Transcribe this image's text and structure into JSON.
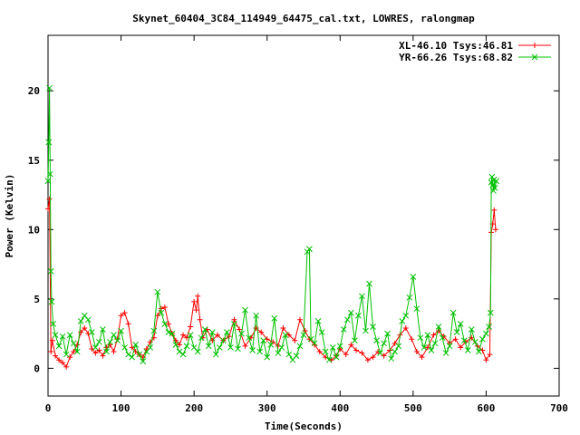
{
  "chart_data": {
    "type": "line",
    "title": "Skynet_60404_3C84_114949_64475_cal.txt, LOWRES, ralongmap",
    "xlabel": "Time(Seconds)",
    "ylabel": "Power (Kelvin)",
    "xlim": [
      0,
      700
    ],
    "ylim": [
      -2,
      24
    ],
    "xticks": [
      0,
      100,
      200,
      300,
      400,
      500,
      600,
      700
    ],
    "yticks": [
      0,
      5,
      10,
      15,
      20
    ],
    "grid": false,
    "legend_position": "top-right",
    "series": [
      {
        "name": "XL-46.10 Tsys:46.81",
        "color": "#ff0000",
        "marker": "+",
        "x": [
          0,
          2,
          4,
          6,
          10,
          15,
          20,
          25,
          30,
          35,
          40,
          45,
          50,
          55,
          60,
          65,
          70,
          75,
          80,
          85,
          90,
          95,
          100,
          105,
          110,
          115,
          120,
          125,
          130,
          135,
          140,
          145,
          150,
          155,
          160,
          165,
          170,
          175,
          180,
          185,
          190,
          195,
          200,
          203,
          205,
          208,
          212,
          218,
          225,
          232,
          240,
          248,
          255,
          262,
          270,
          278,
          285,
          292,
          300,
          308,
          315,
          322,
          330,
          338,
          345,
          352,
          358,
          365,
          372,
          380,
          388,
          395,
          400,
          408,
          415,
          422,
          430,
          438,
          445,
          452,
          460,
          468,
          475,
          482,
          490,
          498,
          505,
          512,
          520,
          528,
          535,
          542,
          550,
          558,
          565,
          572,
          580,
          588,
          595,
          600,
          605,
          607,
          609,
          611,
          613
        ],
        "y": [
          11.5,
          12.2,
          1.2,
          2.0,
          0.9,
          0.6,
          0.4,
          0.1,
          0.8,
          1.2,
          1.7,
          2.6,
          2.9,
          2.5,
          1.4,
          1.1,
          1.3,
          0.9,
          1.5,
          1.7,
          1.2,
          2.1,
          3.8,
          4.0,
          3.2,
          1.5,
          1.2,
          1.0,
          0.8,
          1.4,
          1.9,
          2.2,
          3.8,
          4.3,
          4.4,
          3.2,
          2.5,
          2.0,
          1.7,
          2.4,
          2.2,
          3.0,
          4.8,
          4.2,
          5.2,
          3.5,
          2.2,
          2.8,
          2.0,
          2.4,
          2.0,
          2.3,
          3.5,
          2.8,
          1.6,
          2.2,
          2.9,
          2.6,
          2.1,
          1.9,
          1.6,
          2.9,
          2.4,
          2.0,
          3.5,
          2.7,
          2.1,
          1.7,
          1.2,
          0.8,
          0.6,
          0.9,
          1.4,
          1.0,
          1.7,
          1.3,
          1.1,
          0.6,
          0.8,
          1.2,
          0.9,
          1.3,
          1.8,
          2.4,
          2.9,
          2.1,
          1.2,
          0.8,
          1.5,
          2.4,
          2.7,
          2.3,
          1.8,
          2.1,
          1.5,
          1.9,
          2.2,
          1.6,
          1.3,
          0.6,
          1.0,
          9.8,
          10.4,
          11.4,
          10.0
        ]
      },
      {
        "name": "YR-66.26 Tsys:68.82",
        "color": "#00c000",
        "marker": "x",
        "x": [
          0,
          1,
          2,
          3,
          4,
          5,
          7,
          10,
          15,
          20,
          25,
          30,
          35,
          40,
          45,
          50,
          55,
          60,
          65,
          70,
          75,
          80,
          85,
          90,
          95,
          100,
          105,
          110,
          115,
          120,
          125,
          130,
          135,
          140,
          145,
          150,
          155,
          160,
          165,
          170,
          175,
          180,
          185,
          190,
          195,
          200,
          205,
          210,
          215,
          220,
          225,
          230,
          235,
          240,
          245,
          250,
          255,
          260,
          265,
          270,
          275,
          280,
          285,
          290,
          295,
          300,
          305,
          310,
          315,
          320,
          325,
          330,
          335,
          340,
          345,
          350,
          355,
          358,
          360,
          365,
          370,
          375,
          380,
          385,
          390,
          395,
          400,
          405,
          410,
          415,
          420,
          425,
          430,
          435,
          440,
          445,
          450,
          455,
          460,
          465,
          470,
          475,
          480,
          485,
          490,
          495,
          500,
          505,
          510,
          515,
          520,
          525,
          530,
          535,
          540,
          545,
          550,
          555,
          560,
          565,
          570,
          575,
          580,
          585,
          590,
          595,
          600,
          604,
          606,
          607,
          608,
          609,
          610,
          611,
          612,
          614
        ],
        "y": [
          13.5,
          16.3,
          20.2,
          14.0,
          7.0,
          4.8,
          3.2,
          2.4,
          1.6,
          2.3,
          1.0,
          2.4,
          1.8,
          1.2,
          3.4,
          3.8,
          3.5,
          2.6,
          1.5,
          1.9,
          2.8,
          1.2,
          1.9,
          2.4,
          2.0,
          2.7,
          1.5,
          1.0,
          0.8,
          1.7,
          1.0,
          0.5,
          1.2,
          1.5,
          2.7,
          5.5,
          4.0,
          3.2,
          2.6,
          2.5,
          1.7,
          1.2,
          1.0,
          1.6,
          2.4,
          1.5,
          1.2,
          2.2,
          2.8,
          1.6,
          2.6,
          1.0,
          1.5,
          2.0,
          2.6,
          1.5,
          3.2,
          1.4,
          2.5,
          4.2,
          2.2,
          1.3,
          3.8,
          1.2,
          2.0,
          0.8,
          1.7,
          3.6,
          1.1,
          1.5,
          2.4,
          1.0,
          0.6,
          0.9,
          1.6,
          2.4,
          8.4,
          8.6,
          2.1,
          1.8,
          3.4,
          2.6,
          1.2,
          0.6,
          1.5,
          0.8,
          1.6,
          2.8,
          3.5,
          4.0,
          2.0,
          3.8,
          5.2,
          2.7,
          6.1,
          3.0,
          2.0,
          1.1,
          1.8,
          2.5,
          0.7,
          1.2,
          1.6,
          3.4,
          3.8,
          5.1,
          6.6,
          4.3,
          2.2,
          1.5,
          2.4,
          1.3,
          1.8,
          3.0,
          2.2,
          1.1,
          1.6,
          4.0,
          2.6,
          3.2,
          2.0,
          1.3,
          2.8,
          1.9,
          1.2,
          2.1,
          2.5,
          3.0,
          4.0,
          13.4,
          13.8,
          13.2,
          12.8,
          13.6,
          13.0,
          13.5
        ]
      }
    ]
  }
}
